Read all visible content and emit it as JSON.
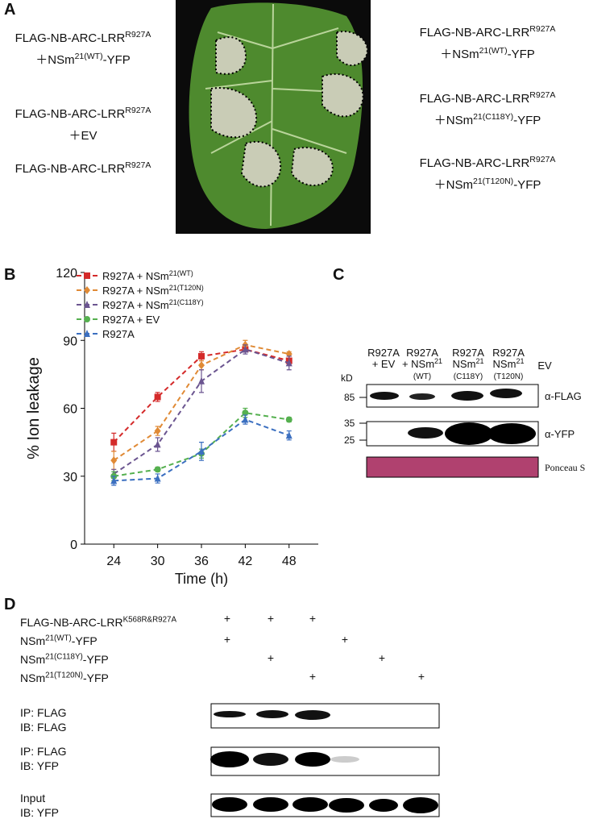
{
  "panel_a": {
    "label": "A",
    "left": [
      {
        "line1": {
          "pre": "FLAG-NB-ARC-LRR",
          "sup": "R927A"
        },
        "line2": {
          "pre": "＋NSm",
          "sup": "21(WT)",
          "post": "-YFP"
        }
      },
      {
        "line1": {
          "pre": "FLAG-NB-ARC-LRR",
          "sup": "R927A"
        },
        "line2": {
          "pre": "＋EV"
        }
      },
      {
        "line1": {
          "pre": "FLAG-NB-ARC-LRR",
          "sup": "R927A"
        }
      }
    ],
    "right": [
      {
        "line1": {
          "pre": "FLAG-NB-ARC-LRR",
          "sup": "R927A"
        },
        "line2": {
          "pre": "＋NSm",
          "sup": "21(WT)",
          "post": "-YFP"
        }
      },
      {
        "line1": {
          "pre": "FLAG-NB-ARC-LRR",
          "sup": "R927A"
        },
        "line2": {
          "pre": "＋NSm",
          "sup": "21(C118Y)",
          "post": "-YFP"
        }
      },
      {
        "line1": {
          "pre": "FLAG-NB-ARC-LRR",
          "sup": "R927A"
        },
        "line2": {
          "pre": "＋NSm",
          "sup": "21(T120N)",
          "post": "-YFP"
        }
      }
    ]
  },
  "chart_data": {
    "type": "line",
    "panel_label": "B",
    "x_label": "Time (h)",
    "y_label": "% Ion leakage",
    "x": [
      24,
      30,
      36,
      42,
      48
    ],
    "xlim": [
      20,
      52
    ],
    "xticks": [
      24,
      30,
      36,
      42,
      48
    ],
    "ylim": [
      0,
      120
    ],
    "yticks": [
      0,
      30,
      60,
      90,
      120
    ],
    "legend": "upper left",
    "dashed": true,
    "series": [
      {
        "name": "R927A + NSm",
        "name_sup": "21(WT)",
        "color": "#d42a2a",
        "marker": "square",
        "values": [
          45,
          65,
          83,
          86,
          81
        ],
        "errors": [
          4,
          2,
          2,
          1,
          2
        ]
      },
      {
        "name": "R927A + NSm",
        "name_sup": "21(T120N)",
        "color": "#e08a35",
        "marker": "diamond",
        "values": [
          37,
          50,
          79,
          88,
          84
        ],
        "errors": [
          4,
          2,
          2,
          2,
          1
        ]
      },
      {
        "name": "R927A + NSm",
        "name_sup": "21(C118Y)",
        "color": "#6b5590",
        "marker": "triangle",
        "values": [
          31,
          44,
          72,
          86,
          80
        ],
        "errors": [
          2,
          3,
          5,
          2,
          3
        ]
      },
      {
        "name": "R927A + EV",
        "color": "#55b04f",
        "marker": "circle",
        "values": [
          30,
          33,
          40,
          58,
          55
        ],
        "errors": [
          2,
          1,
          2,
          2,
          1
        ]
      },
      {
        "name": "R927A",
        "color": "#3b6fc0",
        "marker": "triangle",
        "values": [
          28,
          29,
          41,
          55,
          48
        ],
        "errors": [
          2,
          2,
          4,
          2,
          2
        ]
      }
    ]
  },
  "panel_c": {
    "label": "C",
    "columns": [
      {
        "line1": "R927A",
        "line2": "+ EV"
      },
      {
        "line1": "R927A",
        "line2": "+ NSm",
        "line2_sup": "21",
        "line3": "(WT)"
      },
      {
        "line1": "R927A",
        "line2": "NSm",
        "line2_sup": "21",
        "line3": "(C118Y)"
      },
      {
        "line1": "R927A",
        "line2": "NSm",
        "line2_sup": "21",
        "line3": "(T120N)"
      },
      {
        "line1": "EV"
      }
    ],
    "kd_label": "kD",
    "markers": [
      85,
      35,
      25
    ],
    "rows": [
      "α-FLAG",
      "α-YFP",
      "Ponceau S"
    ]
  },
  "panel_d": {
    "label": "D",
    "rows": [
      {
        "label": {
          "pre": "FLAG-NB-ARC-LRR",
          "sup": "K568R&R927A"
        },
        "marks": [
          "+",
          "+",
          "+",
          null,
          null,
          null
        ]
      },
      {
        "label": {
          "pre": "NSm",
          "sup": "21(WT)",
          "post": "-YFP"
        },
        "marks": [
          "+",
          null,
          null,
          "+",
          null,
          null
        ]
      },
      {
        "label": {
          "pre": "NSm",
          "sup": "21(C118Y)",
          "post": "-YFP"
        },
        "marks": [
          null,
          "+",
          null,
          null,
          "+",
          null
        ]
      },
      {
        "label": {
          "pre": "NSm",
          "sup": "21(T120N)",
          "post": "-YFP"
        },
        "marks": [
          null,
          null,
          "+",
          null,
          null,
          "+"
        ]
      }
    ],
    "blots": [
      {
        "line1": "IP: FLAG",
        "line2": "IB: FLAG"
      },
      {
        "line1": "IP: FLAG",
        "line2": "IB: YFP"
      },
      {
        "line1": "Input",
        "line2": "IB: YFP"
      }
    ]
  }
}
